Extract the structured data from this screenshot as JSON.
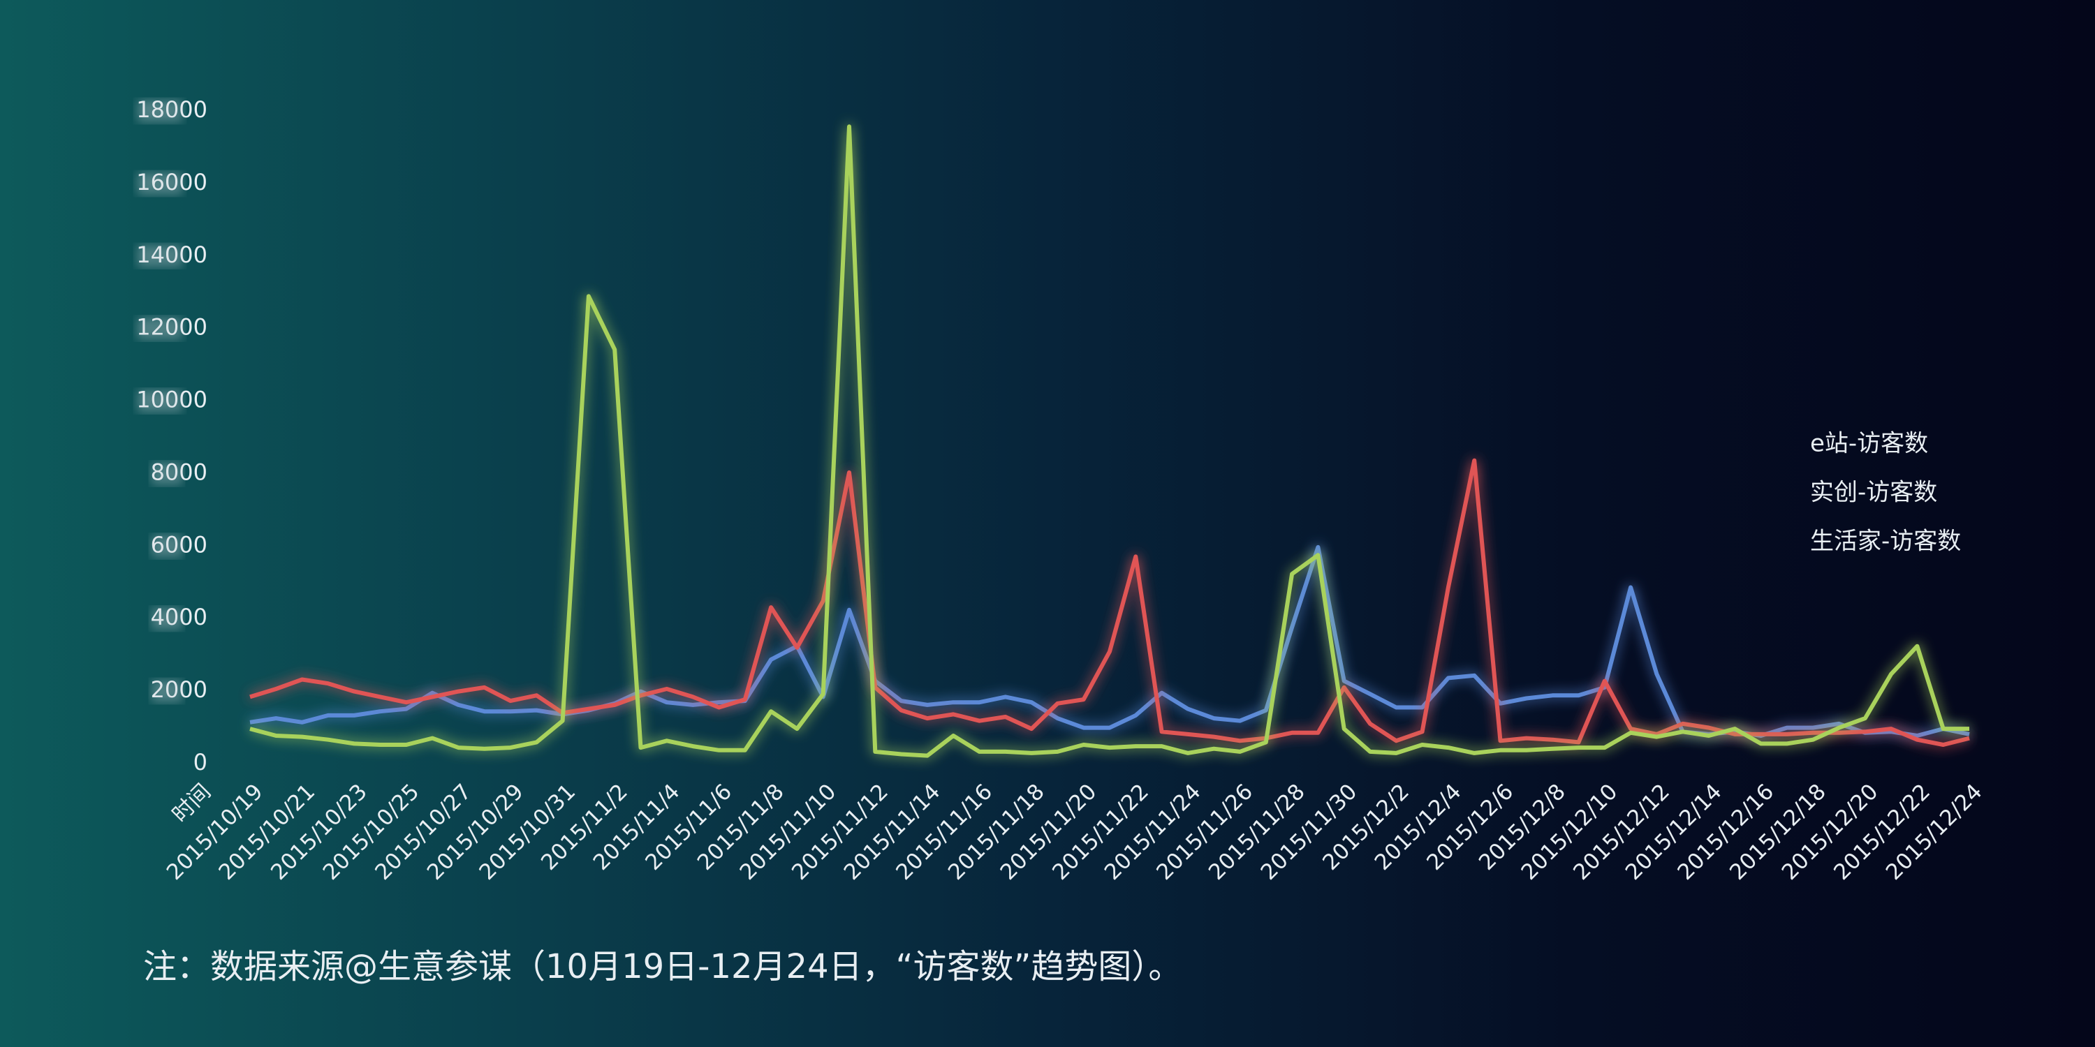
{
  "chart_data": {
    "type": "line",
    "x_label": "时间",
    "note": "注：数据来源@生意参谋（10月19日-12月24日，“访客数”趋势图）。",
    "categories": [
      "2015/10/19",
      null,
      "2015/10/21",
      null,
      "2015/10/23",
      null,
      "2015/10/25",
      null,
      "2015/10/27",
      null,
      "2015/10/29",
      null,
      "2015/10/31",
      null,
      "2015/11/2",
      null,
      "2015/11/4",
      null,
      "2015/11/6",
      null,
      "2015/11/8",
      null,
      "2015/11/10",
      null,
      "2015/11/12",
      null,
      "2015/11/14",
      null,
      "2015/11/16",
      null,
      "2015/11/18",
      null,
      "2015/11/20",
      null,
      "2015/11/22",
      null,
      "2015/11/24",
      null,
      "2015/11/26",
      null,
      "2015/11/28",
      null,
      "2015/11/30",
      null,
      "2015/12/2",
      null,
      "2015/12/4",
      null,
      "2015/12/6",
      null,
      "2015/12/8",
      null,
      "2015/12/10",
      null,
      "2015/12/12",
      null,
      "2015/12/14",
      null,
      "2015/12/16",
      null,
      "2015/12/18",
      null,
      "2015/12/20",
      null,
      "2015/12/22",
      null,
      "2015/12/24"
    ],
    "series": [
      {
        "name": "e站-访客数",
        "color": "#5b8ad8",
        "values": [
          1140,
          1250,
          1140,
          1330,
          1330,
          1440,
          1510,
          1950,
          1620,
          1440,
          1440,
          1470,
          1360,
          1470,
          1660,
          1990,
          1690,
          1620,
          1690,
          1730,
          2870,
          3240,
          1840,
          4240,
          2280,
          1730,
          1620,
          1690,
          1690,
          1840,
          1690,
          1250,
          990,
          990,
          1330,
          1950,
          1510,
          1250,
          1180,
          1470,
          3760,
          5970,
          2280,
          1920,
          1550,
          1550,
          2360,
          2430,
          1660,
          1800,
          1880,
          1880,
          2100,
          4860,
          2470,
          880,
          810,
          880,
          770,
          990,
          990,
          1100,
          850,
          880,
          770,
          960,
          810
        ]
      },
      {
        "name": "实创-访客数",
        "color": "#e05454",
        "values": [
          1840,
          2060,
          2320,
          2210,
          1990,
          1840,
          1690,
          1840,
          1990,
          2100,
          1730,
          1880,
          1400,
          1510,
          1620,
          1880,
          2060,
          1840,
          1550,
          1770,
          4310,
          3200,
          4490,
          8030,
          2100,
          1470,
          1250,
          1360,
          1180,
          1290,
          960,
          1660,
          1770,
          3090,
          5710,
          880,
          810,
          740,
          630,
          700,
          850,
          850,
          2100,
          1100,
          630,
          880,
          4860,
          8360,
          630,
          700,
          660,
          590,
          2280,
          960,
          810,
          1100,
          990,
          810,
          810,
          810,
          850,
          850,
          880,
          960,
          660,
          520,
          700
        ]
      },
      {
        "name": "生活家-访客数",
        "color": "#a9d25c",
        "values": [
          960,
          770,
          740,
          660,
          550,
          520,
          520,
          700,
          440,
          410,
          440,
          590,
          1180,
          12890,
          11420,
          440,
          630,
          480,
          370,
          370,
          1440,
          960,
          1920,
          17570,
          330,
          260,
          220,
          770,
          330,
          330,
          290,
          330,
          520,
          440,
          480,
          480,
          290,
          410,
          330,
          590,
          5230,
          5750,
          960,
          330,
          290,
          520,
          440,
          290,
          370,
          370,
          410,
          440,
          440,
          850,
          740,
          880,
          770,
          960,
          550,
          550,
          660,
          990,
          1250,
          2470,
          3240,
          960,
          960
        ]
      }
    ],
    "ylim": [
      0,
      18000
    ],
    "yticks": [
      0,
      2000,
      4000,
      6000,
      8000,
      10000,
      12000,
      14000,
      16000,
      18000
    ]
  }
}
